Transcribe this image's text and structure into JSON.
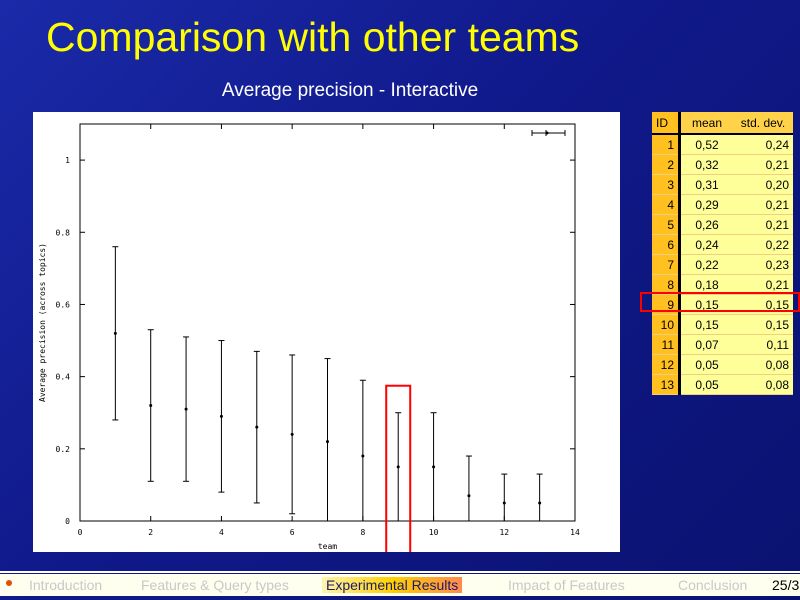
{
  "slide": {
    "title": "Comparison with other teams",
    "chart_heading": "Average precision - Interactive",
    "page_number": "25/3"
  },
  "chart_data": {
    "type": "scatter",
    "title": "",
    "xlabel": "team",
    "ylabel": "Average precision (across topics)",
    "xlim": [
      0,
      14
    ],
    "ylim": [
      0,
      1.1
    ],
    "x_ticks": [
      "0",
      "2",
      "4",
      "6",
      "8",
      "10",
      "12",
      "14"
    ],
    "y_ticks": [
      "0",
      "0.2",
      "0.4",
      "0.6",
      "0.8",
      "1"
    ],
    "error_bars": true,
    "legend_placement": "top-right",
    "x": [
      1,
      2,
      3,
      4,
      5,
      6,
      7,
      8,
      9,
      10,
      11,
      12,
      13
    ],
    "values": [
      0.52,
      0.32,
      0.31,
      0.29,
      0.26,
      0.24,
      0.22,
      0.18,
      0.15,
      0.15,
      0.07,
      0.05,
      0.05
    ],
    "std_dev": [
      0.24,
      0.21,
      0.2,
      0.21,
      0.21,
      0.22,
      0.23,
      0.21,
      0.15,
      0.15,
      0.11,
      0.08,
      0.08
    ],
    "highlight_team": 9,
    "highlight_color": "#ff0000"
  },
  "table": {
    "headers": [
      "ID",
      "mean",
      "std. dev."
    ],
    "rows": [
      [
        "1",
        "0,52",
        "0,24"
      ],
      [
        "2",
        "0,32",
        "0,21"
      ],
      [
        "3",
        "0,31",
        "0,20"
      ],
      [
        "4",
        "0,29",
        "0,21"
      ],
      [
        "5",
        "0,26",
        "0,21"
      ],
      [
        "6",
        "0,24",
        "0,22"
      ],
      [
        "7",
        "0,22",
        "0,23"
      ],
      [
        "8",
        "0,18",
        "0,21"
      ],
      [
        "9",
        "0,15",
        "0,15"
      ],
      [
        "10",
        "0,15",
        "0,15"
      ],
      [
        "11",
        "0,07",
        "0,11"
      ],
      [
        "12",
        "0,05",
        "0,08"
      ],
      [
        "13",
        "0,05",
        "0,08"
      ]
    ],
    "highlight_row": 8
  },
  "nav": {
    "items": [
      "Introduction",
      "Features & Query types",
      "Experimental Results",
      "Impact of Features",
      "Conclusion"
    ],
    "active_index": 2
  },
  "colors": {
    "title": "#ffff00",
    "background": "#1a2aa8",
    "table_bg": "#ffff99",
    "table_id_bg": "#ffc020"
  }
}
